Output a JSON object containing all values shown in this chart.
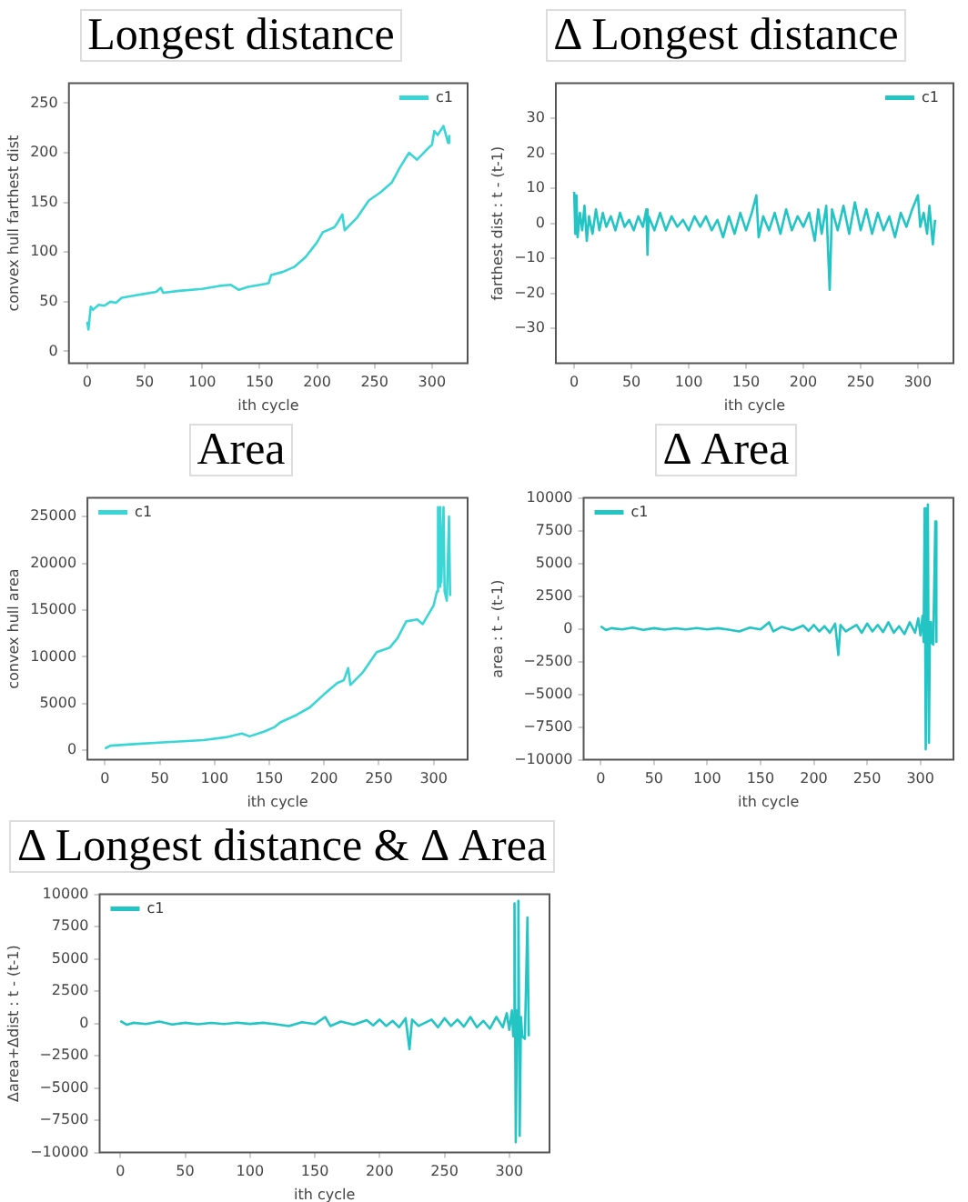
{
  "chart_data": [
    {
      "type": "line",
      "title": "Longest distance",
      "xlabel": "ith cycle",
      "ylabel": "convex hull farthest dist",
      "legend": "top right",
      "grid": false,
      "xlim": [
        -16,
        331
      ],
      "xticks": [
        0,
        50,
        100,
        150,
        200,
        250,
        300
      ],
      "ylim": [
        -12,
        270
      ],
      "yticks": [
        0,
        50,
        100,
        150,
        200,
        250
      ],
      "series": [
        {
          "name": "c1",
          "color": "#3ad6d6",
          "x": [
            0,
            1,
            3,
            5,
            10,
            15,
            20,
            25,
            30,
            40,
            50,
            60,
            64,
            66,
            80,
            100,
            115,
            125,
            132,
            140,
            155,
            158,
            160,
            170,
            180,
            190,
            200,
            205,
            215,
            218,
            222,
            224,
            235,
            245,
            255,
            265,
            272,
            280,
            287,
            297,
            300,
            302,
            305,
            310,
            314,
            315
          ],
          "values": [
            30,
            22,
            45,
            42,
            47,
            46,
            50,
            49,
            54,
            56,
            58,
            60,
            64,
            59,
            61,
            63,
            66,
            67,
            62,
            65,
            68,
            69,
            77,
            80,
            85,
            95,
            110,
            120,
            125,
            130,
            138,
            122,
            135,
            152,
            160,
            170,
            185,
            200,
            193,
            205,
            208,
            222,
            218,
            227,
            210,
            218
          ]
        }
      ]
    },
    {
      "type": "line",
      "title": "Δ Longest distance",
      "xlabel": "ith cycle",
      "ylabel": "farthest dist : t - (t-1)",
      "legend": "top right",
      "grid": false,
      "xlim": [
        -16,
        331
      ],
      "xticks": [
        0,
        50,
        100,
        150,
        200,
        250,
        300
      ],
      "ylim": [
        -40,
        40
      ],
      "yticks": [
        -30,
        -20,
        -10,
        0,
        10,
        20,
        30
      ],
      "series": [
        {
          "name": "c1",
          "color": "#22c4c4",
          "x": [
            0,
            1,
            2,
            3,
            5,
            7,
            9,
            11,
            13,
            16,
            19,
            22,
            25,
            28,
            32,
            36,
            40,
            44,
            48,
            52,
            56,
            60,
            63,
            64,
            65,
            70,
            75,
            80,
            85,
            90,
            95,
            100,
            105,
            110,
            115,
            120,
            125,
            130,
            135,
            140,
            145,
            150,
            155,
            159,
            161,
            165,
            170,
            175,
            180,
            185,
            190,
            195,
            200,
            205,
            210,
            213,
            216,
            220,
            223,
            225,
            230,
            235,
            240,
            245,
            250,
            255,
            260,
            265,
            270,
            275,
            280,
            285,
            290,
            295,
            300,
            302,
            305,
            308,
            310,
            313,
            315
          ],
          "values": [
            9,
            -3,
            8,
            -4,
            3,
            -2,
            5,
            -5,
            2,
            -3,
            4,
            -2,
            3,
            -1,
            2,
            -2,
            3,
            -1,
            1,
            -2,
            2,
            -1,
            4,
            -9,
            2,
            -2,
            3,
            -2,
            2,
            -1,
            1,
            -2,
            2,
            -1,
            2,
            -2,
            1,
            -4,
            2,
            -3,
            3,
            -2,
            3,
            8,
            -4,
            2,
            -2,
            3,
            -3,
            4,
            -2,
            2,
            -1,
            3,
            -5,
            4,
            -3,
            5,
            -19,
            4,
            -2,
            5,
            -3,
            6,
            -2,
            4,
            -3,
            3,
            -2,
            2,
            -4,
            3,
            -1,
            4,
            8,
            -1,
            3,
            -3,
            5,
            -6,
            1
          ]
        }
      ]
    },
    {
      "type": "line",
      "title": "Area",
      "xlabel": "ith cycle",
      "ylabel": "convex hull area",
      "legend": "top left",
      "grid": false,
      "xlim": [
        -16,
        331
      ],
      "xticks": [
        0,
        50,
        100,
        150,
        200,
        250,
        300
      ],
      "ylim": [
        -1000,
        27000
      ],
      "yticks": [
        0,
        5000,
        10000,
        15000,
        20000,
        25000
      ],
      "series": [
        {
          "name": "c1",
          "color": "#3ad6d6",
          "x": [
            0,
            5,
            30,
            60,
            90,
            110,
            125,
            132,
            145,
            155,
            160,
            175,
            187,
            200,
            212,
            218,
            222,
            224,
            235,
            248,
            260,
            267,
            275,
            285,
            290,
            300,
            303,
            304,
            305,
            306,
            307,
            309,
            310,
            312,
            314,
            315
          ],
          "values": [
            200,
            500,
            700,
            900,
            1100,
            1400,
            1800,
            1500,
            2000,
            2500,
            3000,
            3800,
            4600,
            6000,
            7200,
            7500,
            8800,
            7000,
            8300,
            10500,
            11000,
            12000,
            13800,
            14000,
            13500,
            15500,
            17000,
            26000,
            17500,
            26000,
            18000,
            26000,
            17000,
            16000,
            25000,
            16500
          ]
        }
      ]
    },
    {
      "type": "line",
      "title": "Δ Area",
      "xlabel": "ith cycle",
      "ylabel": "area : t - (t-1)",
      "legend": "top left",
      "grid": false,
      "xlim": [
        -16,
        331
      ],
      "xticks": [
        0,
        50,
        100,
        150,
        200,
        250,
        300
      ],
      "ylim": [
        -10000,
        10000
      ],
      "yticks": [
        -10000,
        -7500,
        -5000,
        -2500,
        0,
        2500,
        5000,
        7500,
        10000
      ],
      "series": [
        {
          "name": "c1",
          "color": "#22c4c4",
          "x": [
            0,
            5,
            10,
            20,
            30,
            40,
            50,
            60,
            70,
            80,
            90,
            100,
            110,
            120,
            130,
            140,
            150,
            158,
            162,
            170,
            180,
            190,
            195,
            200,
            205,
            210,
            215,
            220,
            223,
            225,
            230,
            240,
            245,
            250,
            255,
            260,
            265,
            270,
            275,
            280,
            285,
            290,
            295,
            298,
            300,
            302,
            303,
            304,
            305,
            306,
            307,
            308,
            309,
            310,
            312,
            314,
            315
          ],
          "values": [
            200,
            -100,
            50,
            -50,
            100,
            -80,
            50,
            -60,
            40,
            -50,
            60,
            -40,
            50,
            -60,
            -200,
            100,
            -50,
            500,
            -200,
            150,
            -100,
            250,
            -150,
            300,
            -200,
            200,
            -300,
            400,
            -2000,
            300,
            -200,
            300,
            -300,
            400,
            -200,
            300,
            -250,
            500,
            -300,
            200,
            -400,
            500,
            -300,
            800,
            -500,
            1000,
            -1000,
            9200,
            -9200,
            1000,
            9500,
            -8700,
            500,
            -1000,
            -1200,
            8200,
            -1000
          ]
        }
      ]
    },
    {
      "type": "line",
      "title": "Δ Longest distance & Δ Area",
      "xlabel": "ith cycle",
      "ylabel": "Δarea+Δdist : t - (t-1)",
      "legend": "top left",
      "grid": false,
      "xlim": [
        -16,
        331
      ],
      "xticks": [
        0,
        50,
        100,
        150,
        200,
        250,
        300
      ],
      "ylim": [
        -10000,
        10000
      ],
      "yticks": [
        -10000,
        -7500,
        -5000,
        -2500,
        0,
        2500,
        5000,
        7500,
        10000
      ],
      "series": [
        {
          "name": "c1",
          "color": "#22c4c4",
          "x": [
            0,
            5,
            10,
            20,
            30,
            40,
            50,
            60,
            70,
            80,
            90,
            100,
            110,
            120,
            130,
            140,
            150,
            158,
            162,
            170,
            180,
            190,
            195,
            200,
            205,
            210,
            215,
            220,
            223,
            225,
            230,
            240,
            245,
            250,
            255,
            260,
            265,
            270,
            275,
            280,
            285,
            290,
            295,
            298,
            300,
            302,
            303,
            304,
            305,
            306,
            307,
            308,
            309,
            310,
            312,
            314,
            315
          ],
          "values": [
            200,
            -100,
            50,
            -50,
            150,
            -80,
            50,
            -60,
            40,
            -50,
            60,
            -40,
            50,
            -60,
            -200,
            100,
            -50,
            500,
            -200,
            150,
            -100,
            250,
            -150,
            300,
            -200,
            200,
            -300,
            400,
            -2000,
            300,
            -200,
            300,
            -300,
            400,
            -200,
            300,
            -250,
            500,
            -300,
            200,
            -400,
            500,
            -300,
            800,
            -500,
            1000,
            -1000,
            9300,
            -9200,
            1000,
            9500,
            -8700,
            500,
            -1000,
            -1200,
            8200,
            -1000
          ]
        }
      ]
    }
  ]
}
